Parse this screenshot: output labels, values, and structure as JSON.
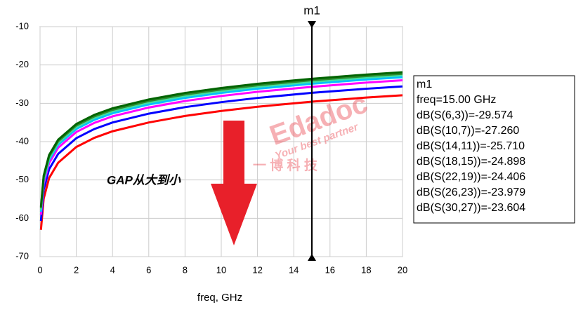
{
  "chart_data": {
    "type": "line",
    "xlabel": "freq, GHz",
    "x": [
      0.05,
      0.2,
      0.5,
      1,
      2,
      3,
      4,
      6,
      8,
      10,
      12,
      15,
      18,
      20
    ],
    "series": [
      {
        "name": "dB(S(6,3))",
        "color": "#ff0000",
        "values": [
          -63.0,
          -54.9,
          -49.5,
          -45.5,
          -41.4,
          -39.0,
          -37.3,
          -35.0,
          -33.3,
          -32.0,
          -30.9,
          -29.574,
          -28.5,
          -27.9
        ]
      },
      {
        "name": "dB(S(10,7))",
        "color": "#0000ff",
        "values": [
          -60.7,
          -52.6,
          -47.2,
          -43.2,
          -39.1,
          -36.7,
          -35.0,
          -32.7,
          -31.0,
          -29.7,
          -28.6,
          -27.26,
          -26.2,
          -25.6
        ]
      },
      {
        "name": "dB(S(14,11))",
        "color": "#ff00ff",
        "values": [
          -59.1,
          -51.0,
          -45.6,
          -41.6,
          -37.5,
          -35.1,
          -33.4,
          -31.1,
          -29.4,
          -28.1,
          -27.0,
          -25.71,
          -24.6,
          -24.0
        ]
      },
      {
        "name": "dB(S(18,15))",
        "color": "#00c0ff",
        "values": [
          -58.3,
          -50.2,
          -44.8,
          -40.8,
          -36.7,
          -34.3,
          -32.6,
          -30.3,
          -28.6,
          -27.3,
          -26.2,
          -24.898,
          -23.8,
          -23.2
        ]
      },
      {
        "name": "dB(S(22,19))",
        "color": "#40e0a0",
        "values": [
          -57.8,
          -49.7,
          -44.3,
          -40.3,
          -36.2,
          -33.8,
          -32.1,
          -29.8,
          -28.1,
          -26.8,
          -25.7,
          -24.406,
          -23.3,
          -22.7
        ]
      },
      {
        "name": "dB(S(26,23))",
        "color": "#2e8b2e",
        "values": [
          -57.4,
          -49.3,
          -43.9,
          -39.9,
          -35.8,
          -33.4,
          -31.7,
          -29.4,
          -27.7,
          -26.4,
          -25.3,
          -23.979,
          -22.9,
          -22.3
        ]
      },
      {
        "name": "dB(S(30,27))",
        "color": "#006400",
        "values": [
          -57.0,
          -48.9,
          -43.5,
          -39.5,
          -35.4,
          -33.0,
          -31.3,
          -29.0,
          -27.3,
          -26.0,
          -24.9,
          -23.604,
          -22.5,
          -21.9
        ]
      }
    ],
    "xlim": [
      0,
      20
    ],
    "xticks": [
      0,
      2,
      4,
      6,
      8,
      10,
      12,
      14,
      16,
      18,
      20
    ],
    "ylim": [
      -70,
      -10
    ],
    "yticks": [
      -70,
      -60,
      -50,
      -40,
      -30,
      -20,
      -10
    ],
    "grid": true,
    "marker": {
      "name": "m1",
      "x": 15,
      "x_label": "freq=15.00 GHz",
      "readouts": [
        "dB(S(6,3))=-29.574",
        "dB(S(10,7))=-27.260",
        "dB(S(14,11))=-25.710",
        "dB(S(18,15))=-24.898",
        "dB(S(22,19))=-24.406",
        "dB(S(26,23))=-23.979",
        "dB(S(30,27))=-23.604"
      ]
    },
    "annotation": "GAP从大到小",
    "watermark": [
      "Edadoc",
      "Your best partner",
      "一 博 科 技"
    ]
  }
}
